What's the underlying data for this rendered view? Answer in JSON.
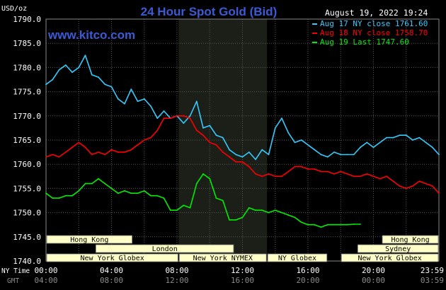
{
  "chart_data": {
    "type": "line",
    "title": "24 Hour Spot Gold (Bid)",
    "website": "www.kitco.com",
    "datetime": "August 19, 2022 19:24",
    "unit_label": "USD/oz",
    "ylim": [
      1740,
      1790
    ],
    "y_ticks": [
      "1790.0",
      "1785.0",
      "1780.0",
      "1775.0",
      "1770.0",
      "1765.0",
      "1760.0",
      "1755.0",
      "1750.0",
      "1745.0",
      "1740.0"
    ],
    "xlim": [
      0,
      24
    ],
    "x_tick_labels": [
      "00:00",
      "04:00",
      "08:00",
      "12:00",
      "16:00",
      "20:00",
      "23:59"
    ],
    "x_tick_labels_gmt": [
      "04:00",
      "08:00",
      "12:00",
      "16:00",
      "20:00",
      "00:00",
      "03:59"
    ],
    "x_axis_label_top": "NY Time",
    "x_axis_label_bottom": "GMT",
    "grid": true,
    "legend_position": "top-right",
    "colors": {
      "aug17": "#33ccff",
      "aug18": "#ff0000",
      "aug19": "#00ee00",
      "title": "#3b5bd6",
      "session_box": "#ffffc8",
      "highlight": "#1c1e18"
    },
    "series": [
      {
        "name": "Aug 17 NY close 1761.60",
        "color": "#33ccff",
        "x": [
          0,
          0.4,
          0.8,
          1.2,
          1.6,
          2.0,
          2.4,
          2.8,
          3.2,
          3.6,
          4.0,
          4.4,
          4.8,
          5.2,
          5.6,
          6.0,
          6.4,
          6.8,
          7.2,
          7.6,
          8.0,
          8.4,
          8.8,
          9.2,
          9.6,
          10.0,
          10.4,
          10.8,
          11.2,
          11.6,
          12.0,
          12.4,
          12.8,
          13.2,
          13.6,
          14.0,
          14.4,
          14.8,
          15.2,
          15.6,
          16.0,
          16.4,
          16.8,
          17.2,
          17.6,
          18.0,
          18.4,
          18.8,
          19.2,
          19.6,
          20.0,
          20.4,
          20.8,
          21.2,
          21.6,
          22.0,
          22.4,
          22.8,
          23.2,
          23.6,
          24.0
        ],
        "values": [
          1776.5,
          1777.5,
          1779.5,
          1780.5,
          1779.0,
          1780.0,
          1782.5,
          1778.5,
          1778.0,
          1776.5,
          1776.0,
          1773.5,
          1772.5,
          1775.5,
          1773.0,
          1773.5,
          1772.0,
          1769.5,
          1771.0,
          1769.5,
          1770.0,
          1768.5,
          1770.0,
          1773.0,
          1767.5,
          1768.0,
          1766.0,
          1765.5,
          1763.0,
          1762.0,
          1761.5,
          1762.5,
          1761.0,
          1763.0,
          1762.0,
          1767.5,
          1769.5,
          1766.5,
          1764.5,
          1765.0,
          1764.0,
          1763.0,
          1762.0,
          1761.5,
          1762.5,
          1762.0,
          1762.0,
          1762.0,
          1763.5,
          1764.5,
          1763.5,
          1764.5,
          1765.5,
          1765.5,
          1766.0,
          1766.0,
          1765.0,
          1765.5,
          1764.5,
          1763.5,
          1762.0
        ]
      },
      {
        "name": "Aug 18 NY close 1758.70",
        "color": "#ff0000",
        "x": [
          0,
          0.4,
          0.8,
          1.2,
          1.6,
          2.0,
          2.4,
          2.8,
          3.2,
          3.6,
          4.0,
          4.4,
          4.8,
          5.2,
          5.6,
          6.0,
          6.4,
          6.8,
          7.2,
          7.6,
          8.0,
          8.4,
          8.8,
          9.2,
          9.6,
          10.0,
          10.4,
          10.8,
          11.2,
          11.6,
          12.0,
          12.4,
          12.8,
          13.2,
          13.6,
          14.0,
          14.4,
          14.8,
          15.2,
          15.6,
          16.0,
          16.4,
          16.8,
          17.2,
          17.6,
          18.0,
          18.4,
          18.8,
          19.2,
          19.6,
          20.0,
          20.4,
          20.8,
          21.2,
          21.6,
          22.0,
          22.4,
          22.8,
          23.2,
          23.6,
          24.0
        ],
        "values": [
          1761.5,
          1762.0,
          1761.5,
          1762.5,
          1763.5,
          1764.5,
          1763.5,
          1762.0,
          1762.5,
          1762.0,
          1763.0,
          1762.5,
          1762.5,
          1763.0,
          1764.0,
          1765.0,
          1765.5,
          1767.0,
          1769.5,
          1769.5,
          1770.0,
          1770.0,
          1769.5,
          1767.0,
          1766.0,
          1764.5,
          1764.0,
          1762.5,
          1761.5,
          1760.5,
          1760.5,
          1759.5,
          1758.0,
          1757.5,
          1758.0,
          1757.5,
          1757.5,
          1758.5,
          1759.5,
          1759.5,
          1759.0,
          1759.0,
          1758.5,
          1758.5,
          1758.0,
          1758.5,
          1758.0,
          1757.5,
          1757.5,
          1758.0,
          1757.5,
          1757.0,
          1757.5,
          1756.5,
          1755.5,
          1755.0,
          1755.5,
          1756.5,
          1756.0,
          1755.5,
          1754.0
        ]
      },
      {
        "name": "Aug 19 Last 1747.60",
        "color": "#00ee00",
        "x": [
          0,
          0.4,
          0.8,
          1.2,
          1.6,
          2.0,
          2.4,
          2.8,
          3.2,
          3.6,
          4.0,
          4.4,
          4.8,
          5.2,
          5.6,
          6.0,
          6.4,
          6.8,
          7.2,
          7.6,
          8.0,
          8.4,
          8.8,
          9.2,
          9.6,
          10.0,
          10.4,
          10.8,
          11.2,
          11.6,
          12.0,
          12.4,
          12.8,
          13.2,
          13.6,
          14.0,
          14.4,
          14.8,
          15.2,
          15.6,
          16.0,
          16.4,
          16.8,
          17.2,
          17.6,
          18.0,
          18.4,
          18.8,
          19.2
        ],
        "values": [
          1754.0,
          1753.0,
          1753.0,
          1753.5,
          1753.5,
          1754.5,
          1756.0,
          1756.0,
          1757.0,
          1756.0,
          1755.0,
          1754.0,
          1754.5,
          1754.0,
          1754.0,
          1754.5,
          1753.5,
          1753.5,
          1753.0,
          1750.5,
          1750.5,
          1751.5,
          1751.0,
          1756.0,
          1758.0,
          1757.0,
          1753.0,
          1752.5,
          1748.5,
          1748.5,
          1749.0,
          1751.0,
          1750.5,
          1750.5,
          1750.0,
          1750.5,
          1750.0,
          1749.5,
          1749.0,
          1748.0,
          1747.5,
          1747.5,
          1747.0,
          1747.5,
          1747.5,
          1747.5,
          1747.5,
          1747.6,
          1747.6
        ]
      }
    ],
    "sessions": [
      {
        "label": "Hong Kong",
        "start": 0,
        "end": 5.3,
        "row": 1
      },
      {
        "label": "London",
        "start": 3.0,
        "end": 11.5,
        "row": 2
      },
      {
        "label": "New York Globex",
        "start": 0,
        "end": 8.1,
        "row": 3
      },
      {
        "label": "New York NYMEX",
        "start": 8.1,
        "end": 13.5,
        "row": 3
      },
      {
        "label": "NY Globex",
        "start": 13.5,
        "end": 17.2,
        "row": 3
      },
      {
        "label": "Hong Kong",
        "start": 20.5,
        "end": 24,
        "row": 1
      },
      {
        "label": "Sydney",
        "start": 19.0,
        "end": 24,
        "row": 2
      },
      {
        "label": "New York Globex",
        "start": 18.0,
        "end": 24,
        "row": 3
      }
    ],
    "highlight_range": [
      8.1,
      13.5
    ]
  }
}
